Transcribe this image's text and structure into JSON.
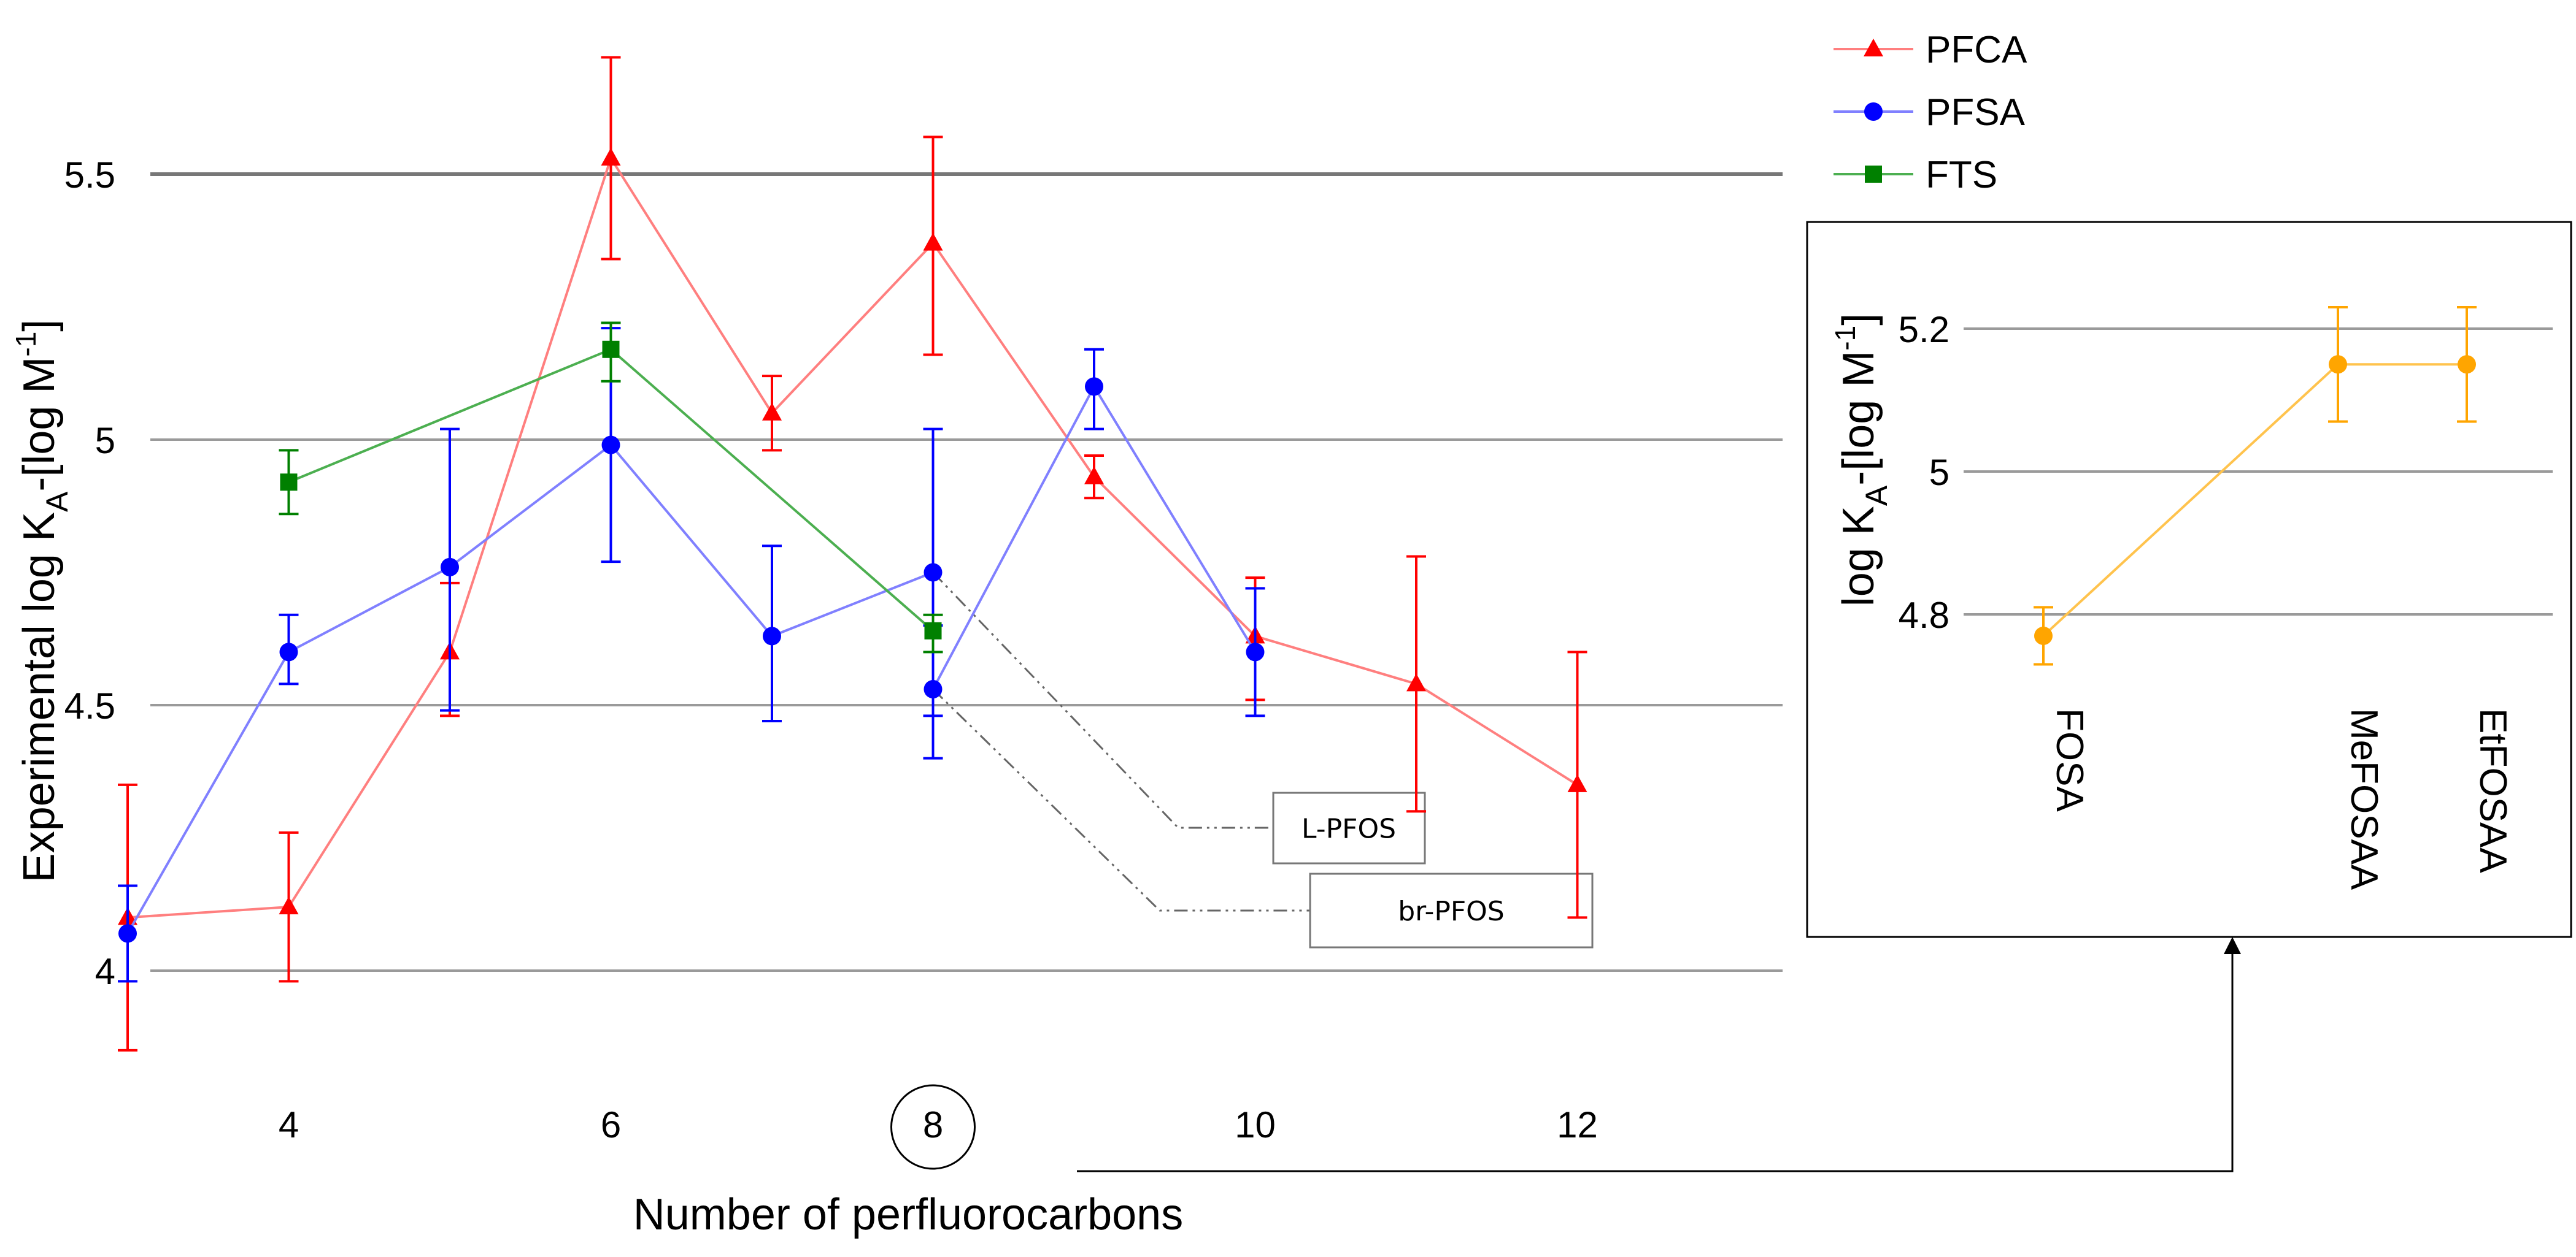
{
  "chart_data": [
    {
      "type": "line",
      "title": "",
      "xlabel": "Number of perfluorocarbons",
      "ylabel": {
        "main": "Experimental log K",
        "sub": "A",
        "unit": "-[log M",
        "sup": "-1",
        "close": "]"
      },
      "xlim": [
        3,
        12
      ],
      "ylim": [
        3.95,
        5.75
      ],
      "xticks": [
        "4",
        "6",
        "8",
        "10",
        "12"
      ],
      "yticks": [
        "4",
        "4.5",
        "5",
        "5.5"
      ],
      "grid": "horizontal",
      "legend_position": "top-right",
      "series": [
        {
          "name": "PFCA",
          "color": "#ff0000",
          "line_color": "#ff7f7f",
          "marker": "triangle",
          "points": [
            {
              "x": 3,
              "y": 4.1,
              "lo": 3.85,
              "hi": 4.35
            },
            {
              "x": 4,
              "y": 4.12,
              "lo": 3.98,
              "hi": 4.26
            },
            {
              "x": 5,
              "y": 4.6,
              "lo": 4.48,
              "hi": 4.73
            },
            {
              "x": 6,
              "y": 5.53,
              "lo": 5.34,
              "hi": 5.72
            },
            {
              "x": 7,
              "y": 5.05,
              "lo": 4.98,
              "hi": 5.12
            },
            {
              "x": 8,
              "y": 5.37,
              "lo": 5.16,
              "hi": 5.57
            },
            {
              "x": 9,
              "y": 4.93,
              "lo": 4.89,
              "hi": 4.97
            },
            {
              "x": 10,
              "y": 4.63,
              "lo": 4.51,
              "hi": 4.74
            },
            {
              "x": 11,
              "y": 4.54,
              "lo": 4.3,
              "hi": 4.78
            },
            {
              "x": 12,
              "y": 4.35,
              "lo": 4.1,
              "hi": 4.6
            }
          ]
        },
        {
          "name": "PFSA",
          "color": "#0000ff",
          "line_color": "#8080ff",
          "marker": "circle",
          "points": [
            {
              "x": 3,
              "y": 4.07,
              "lo": 3.98,
              "hi": 4.16
            },
            {
              "x": 4,
              "y": 4.6,
              "lo": 4.54,
              "hi": 4.67
            },
            {
              "x": 5,
              "y": 4.76,
              "lo": 4.49,
              "hi": 5.02
            },
            {
              "x": 6,
              "y": 4.99,
              "lo": 4.77,
              "hi": 5.21
            },
            {
              "x": 7,
              "y": 4.63,
              "lo": 4.47,
              "hi": 4.8
            },
            {
              "x": 8,
              "y": 4.53,
              "lo": 4.4,
              "hi": 4.65
            },
            {
              "x": 8,
              "y": 4.75,
              "lo": 4.48,
              "hi": 5.02
            },
            {
              "x": 9,
              "y": 5.1,
              "lo": 5.02,
              "hi": 5.17
            },
            {
              "x": 10,
              "y": 4.6,
              "lo": 4.48,
              "hi": 4.72
            }
          ]
        },
        {
          "name": "FTS",
          "color": "#008000",
          "line_color": "#4caf50",
          "marker": "square",
          "points": [
            {
              "x": 4,
              "y": 4.92,
              "lo": 4.86,
              "hi": 4.98
            },
            {
              "x": 6,
              "y": 5.17,
              "lo": 5.11,
              "hi": 5.22
            },
            {
              "x": 8,
              "y": 4.64,
              "lo": 4.6,
              "hi": 4.67
            }
          ]
        }
      ],
      "annotations": [
        {
          "text": "L-PFOS",
          "points_to": {
            "x": 8,
            "y": 4.75
          }
        },
        {
          "text": "br-PFOS",
          "points_to": {
            "x": 8,
            "y": 4.53
          }
        }
      ],
      "highlighted_tick": "8"
    },
    {
      "type": "line",
      "title": "",
      "xlabel": "",
      "ylabel": {
        "main": "log K",
        "sub": "A",
        "unit": "-[log M",
        "sup": "-1",
        "close": "]"
      },
      "ylim": [
        4.7,
        5.25
      ],
      "yticks": [
        "4.8",
        "5",
        "5.2"
      ],
      "grid": "horizontal",
      "categories": [
        "FOSA",
        "MeFOSAA",
        "EtFOSAA"
      ],
      "series": [
        {
          "color": "#ffa500",
          "line_color": "#ffc34d",
          "marker": "circle",
          "points": [
            {
              "x": "FOSA",
              "y": 4.77,
              "lo": 4.73,
              "hi": 4.81
            },
            {
              "x": "MeFOSAA",
              "y": 5.15,
              "lo": 5.07,
              "hi": 5.23
            },
            {
              "x": "EtFOSAA",
              "y": 5.15,
              "lo": 5.07,
              "hi": 5.23
            }
          ]
        }
      ]
    }
  ]
}
